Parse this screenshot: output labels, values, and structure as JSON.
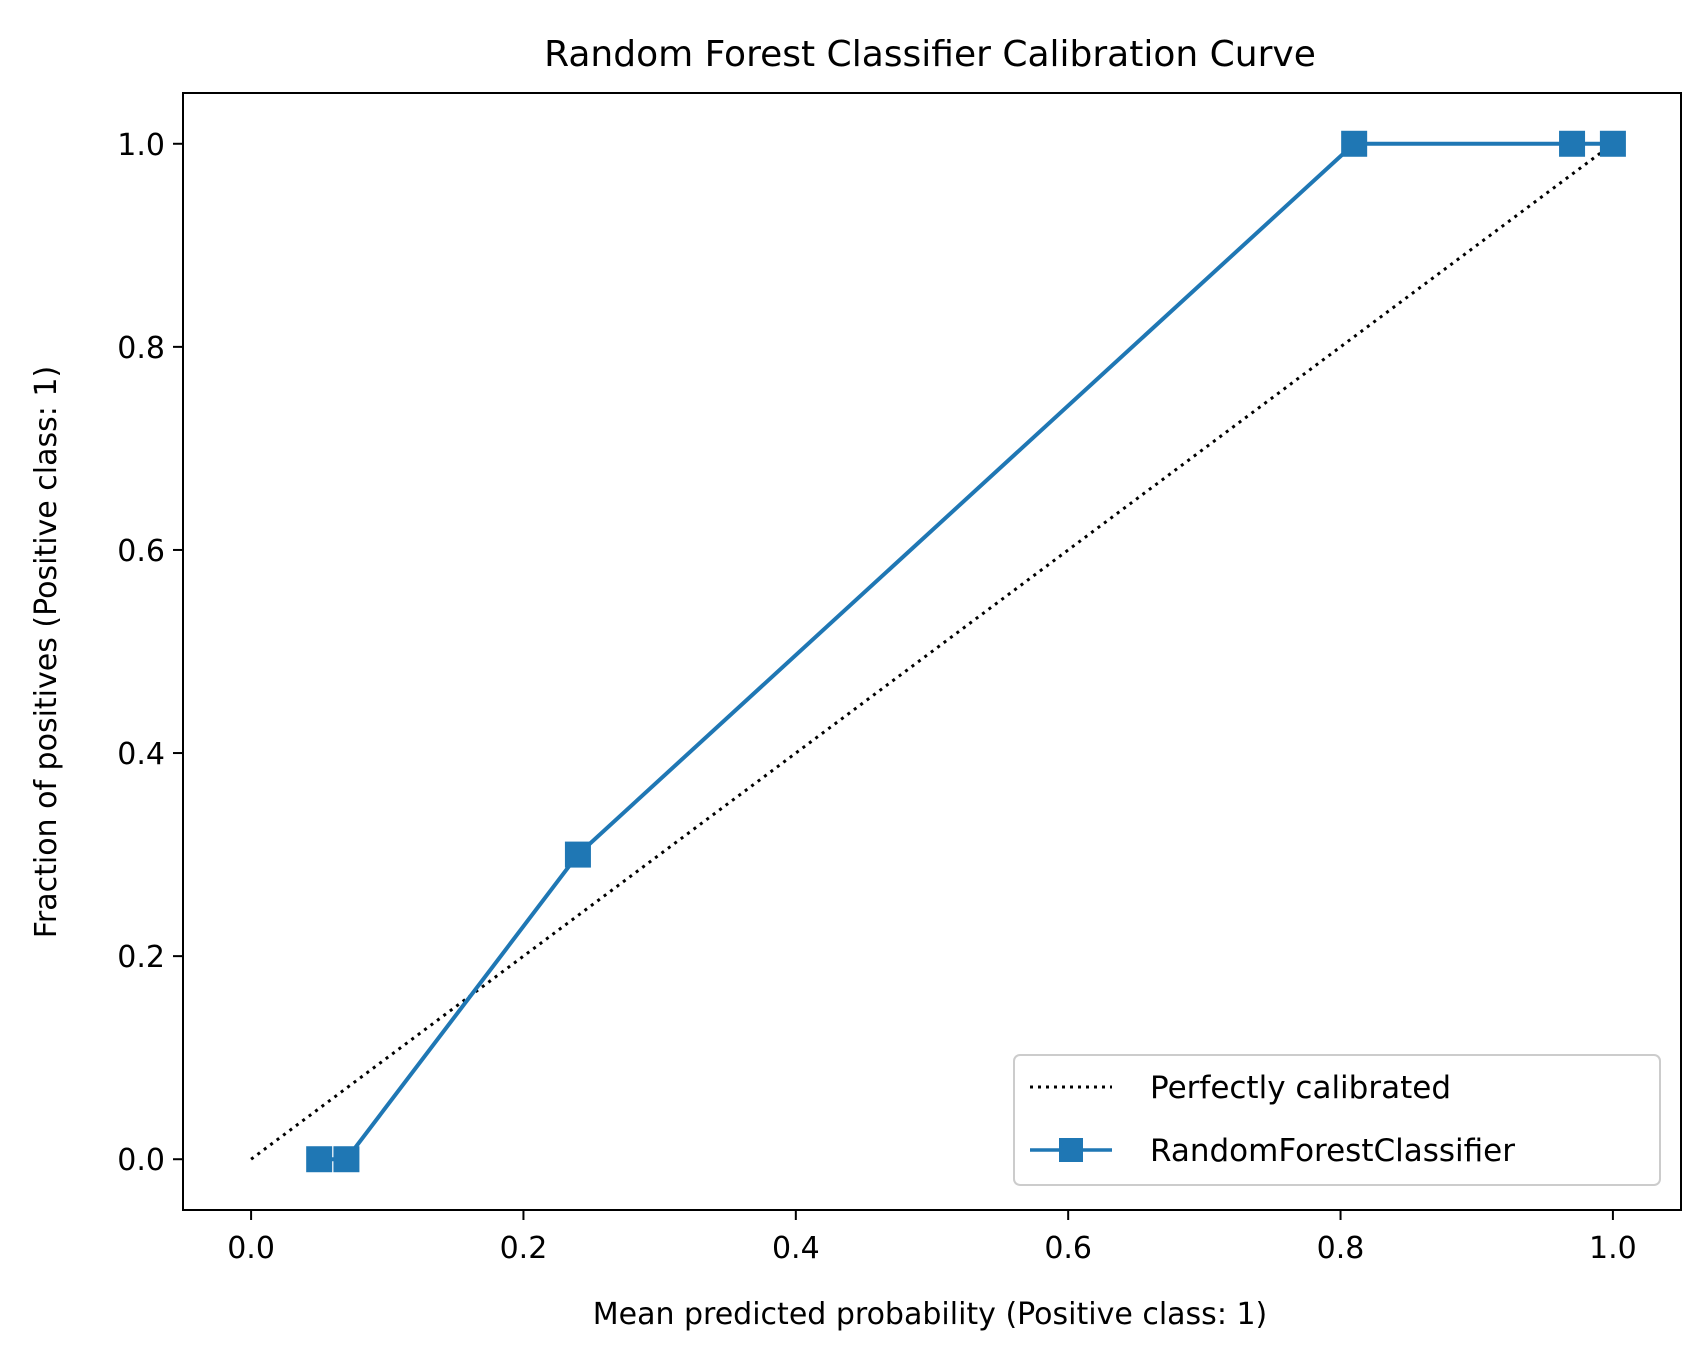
{
  "chart_data": {
    "type": "line",
    "title": "Random Forest Classifier Calibration Curve",
    "xlabel": "Mean predicted probability (Positive class: 1)",
    "ylabel": "Fraction of positives (Positive class: 1)",
    "xlim": [
      -0.05,
      1.05
    ],
    "ylim": [
      -0.05,
      1.05
    ],
    "xticks": [
      0.0,
      0.2,
      0.4,
      0.6,
      0.8,
      1.0
    ],
    "xtick_labels": [
      "0.0",
      "0.2",
      "0.4",
      "0.6",
      "0.8",
      "1.0"
    ],
    "yticks": [
      0.0,
      0.2,
      0.4,
      0.6,
      0.8,
      1.0
    ],
    "ytick_labels": [
      "0.0",
      "0.2",
      "0.4",
      "0.6",
      "0.8",
      "1.0"
    ],
    "grid": false,
    "legend_position": "lower-right",
    "reference": {
      "name": "Perfectly calibrated",
      "x": [
        0.0,
        1.0
      ],
      "y": [
        0.0,
        1.0
      ],
      "color": "#000000",
      "style": "dotted"
    },
    "series": [
      {
        "name": "RandomForestClassifier",
        "color": "#1f77b4",
        "marker": "square",
        "x": [
          0.05,
          0.07,
          0.24,
          0.81,
          0.97,
          1.0
        ],
        "y": [
          0.0,
          0.0,
          0.3,
          1.0,
          1.0,
          1.0
        ]
      }
    ]
  }
}
